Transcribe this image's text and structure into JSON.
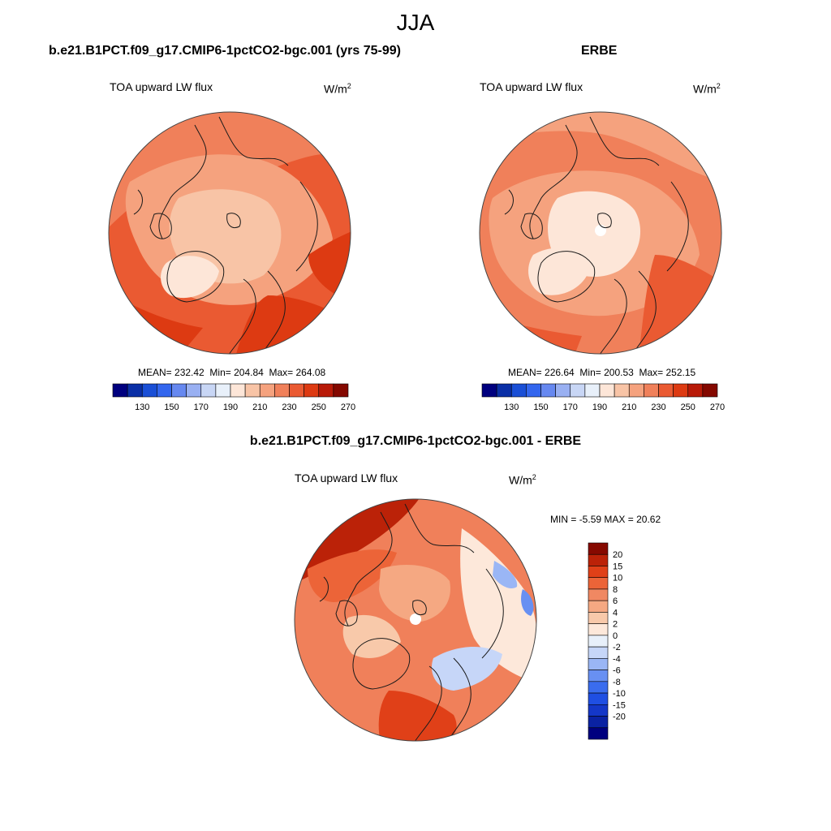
{
  "figure": {
    "season": "JJA",
    "units_base": "W/m",
    "units_exp": "2"
  },
  "panels": {
    "model": {
      "case_title": "b.e21.B1PCT.f09_g17.CMIP6-1pctCO2-bgc.001 (yrs 75-99)",
      "variable": "TOA upward LW flux",
      "mean_label": "MEAN=",
      "mean": "232.42",
      "min_label": "Min=",
      "min": "204.84",
      "max_label": "Max=",
      "max": "264.08"
    },
    "obs": {
      "case_title": "ERBE",
      "variable": "TOA upward LW flux",
      "mean_label": "MEAN=",
      "mean": "226.64",
      "min_label": "Min=",
      "min": "200.53",
      "max_label": "Max=",
      "max": "252.15"
    },
    "diff": {
      "case_title": "b.e21.B1PCT.f09_g17.CMIP6-1pctCO2-bgc.001 - ERBE",
      "variable": "TOA upward LW flux",
      "min_label": "MIN =",
      "min": "-5.59",
      "max_label": "MAX =",
      "max": "20.62"
    }
  },
  "colorbars": {
    "abs": {
      "colors": [
        "#00007f",
        "#0a2fa6",
        "#1a4fd6",
        "#3366ee",
        "#6688f0",
        "#99b0f2",
        "#c8d6f5",
        "#e8f0fa",
        "#fde6d8",
        "#f8c4a6",
        "#f5a27e",
        "#f0805a",
        "#ea5a32",
        "#dd3a12",
        "#b81a08",
        "#840800"
      ],
      "ticks": [
        "130",
        "150",
        "170",
        "190",
        "210",
        "230",
        "250",
        "270"
      ]
    },
    "diff": {
      "colors": [
        "#00007f",
        "#0a22a3",
        "#1437c8",
        "#1f4fe3",
        "#3a6cee",
        "#6890f2",
        "#9ab6f5",
        "#c6d6f8",
        "#e8f0fa",
        "#fde8da",
        "#f8c9aa",
        "#f5a882",
        "#f08862",
        "#ec6438",
        "#e04018",
        "#bb2208",
        "#860900"
      ],
      "ticks": [
        "20",
        "15",
        "10",
        "8",
        "6",
        "4",
        "2",
        "0",
        "-2",
        "-4",
        "-6",
        "-8",
        "-10",
        "-15",
        "-20"
      ]
    }
  },
  "chart_data": [
    {
      "type": "polar_contour_map",
      "title": "TOA upward LW flux",
      "subtitle": "b.e21.B1PCT.f09_g17.CMIP6-1pctCO2-bgc.001 (yrs 75-99)",
      "units": "W/m2",
      "mean": 232.42,
      "min": 204.84,
      "max": 264.08,
      "colorbar_ticks": [
        130,
        150,
        170,
        190,
        210,
        230,
        250,
        270
      ],
      "level_range": [
        120,
        280
      ]
    },
    {
      "type": "polar_contour_map",
      "title": "TOA upward LW flux",
      "subtitle": "ERBE",
      "units": "W/m2",
      "mean": 226.64,
      "min": 200.53,
      "max": 252.15,
      "colorbar_ticks": [
        130,
        150,
        170,
        190,
        210,
        230,
        250,
        270
      ],
      "level_range": [
        120,
        280
      ]
    },
    {
      "type": "polar_contour_map",
      "title": "TOA upward LW flux",
      "subtitle": "b.e21.B1PCT.f09_g17.CMIP6-1pctCO2-bgc.001 - ERBE",
      "units": "W/m2",
      "min": -5.59,
      "max": 20.62,
      "colorbar_levels": [
        20,
        15,
        10,
        8,
        6,
        4,
        2,
        0,
        -2,
        -4,
        -6,
        -8,
        -10,
        -15,
        -20
      ]
    }
  ]
}
